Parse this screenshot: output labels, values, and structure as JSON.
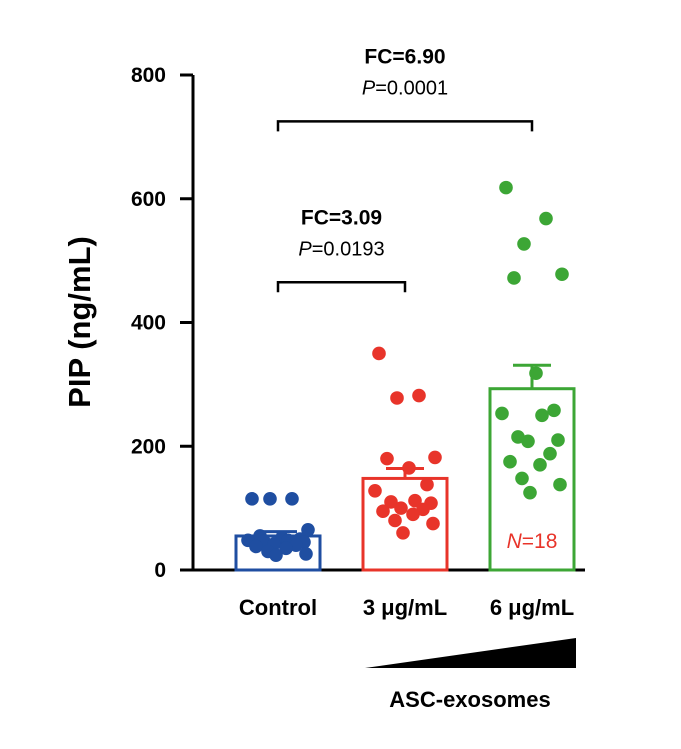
{
  "chart_data": {
    "type": "bar",
    "ylabel": "PIP (ng/mL)",
    "ylim": [
      0,
      800
    ],
    "yticks": [
      0,
      200,
      400,
      600,
      800
    ],
    "categories": [
      "Control",
      "3 μg/mL",
      "6 μg/mL"
    ],
    "bars": [
      {
        "category": "Control",
        "mean": 55,
        "sem": 7,
        "color": "#1f4ea1"
      },
      {
        "category": "3 μg/mL",
        "mean": 148,
        "sem": 16,
        "color": "#e8342a"
      },
      {
        "category": "6 μg/mL",
        "mean": 293,
        "sem": 38,
        "color": "#3ca635"
      }
    ],
    "points": {
      "Control": [
        115,
        115,
        115,
        65,
        55,
        52,
        50,
        48,
        48,
        46,
        45,
        42,
        40,
        38,
        35,
        30,
        26,
        24
      ],
      "3 μg/mL": [
        350,
        282,
        278,
        182,
        180,
        165,
        138,
        128,
        112,
        110,
        108,
        100,
        98,
        95,
        90,
        80,
        75,
        60
      ],
      "6 μg/mL": [
        618,
        568,
        527,
        478,
        472,
        318,
        258,
        253,
        250,
        215,
        210,
        208,
        188,
        175,
        170,
        148,
        138,
        125
      ]
    },
    "comparisons": [
      {
        "from": "Control",
        "to": "3 μg/mL",
        "fc": "FC=3.09",
        "p_italic": "P",
        "p_value": "=0.0193",
        "bracket_y": 465
      },
      {
        "from": "Control",
        "to": "6 μg/mL",
        "fc": "FC=6.90",
        "p_italic": "P",
        "p_value": "=0.0001",
        "bracket_y": 725
      }
    ],
    "n_italic": "N",
    "n_value": "=18",
    "n_color": "#e8342a",
    "group_label": "ASC-exosomes",
    "ramp_color": "#000000"
  }
}
